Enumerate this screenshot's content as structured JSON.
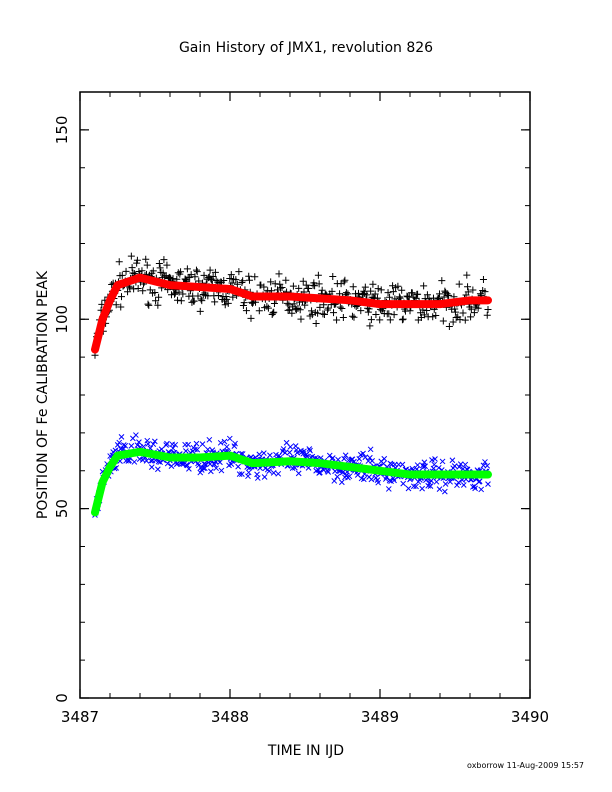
{
  "chart_data": {
    "type": "scatter",
    "title": "Gain History of JMX1, revolution 826",
    "xlabel": "TIME IN IJD",
    "ylabel": "POSITION OF Fe CALIBRATION PEAK",
    "footer": "oxborrow 11-Aug-2009 15:57",
    "xlim": [
      3487,
      3490
    ],
    "ylim": [
      0,
      160
    ],
    "x_ticks": [
      3487,
      3488,
      3489,
      3490
    ],
    "x_tick_labels": [
      "3487",
      "3488",
      "3489",
      "3490"
    ],
    "y_ticks": [
      0,
      50,
      100,
      150
    ],
    "y_tick_labels": [
      "0",
      "50",
      "100",
      "150"
    ],
    "grid": false,
    "legend": false,
    "series": [
      {
        "marker": "plus",
        "color": "#000000",
        "trend": [
          [
            3487.1,
            92
          ],
          [
            3487.15,
            100
          ],
          [
            3487.2,
            105
          ],
          [
            3487.25,
            109
          ],
          [
            3487.4,
            111
          ],
          [
            3487.6,
            109
          ],
          [
            3487.8,
            108.5
          ],
          [
            3488.0,
            108
          ],
          [
            3488.15,
            106
          ],
          [
            3488.4,
            106
          ],
          [
            3488.6,
            105.5
          ],
          [
            3488.8,
            105
          ],
          [
            3489.0,
            104
          ],
          [
            3489.2,
            104
          ],
          [
            3489.4,
            104
          ],
          [
            3489.6,
            105
          ],
          [
            3489.72,
            105
          ]
        ],
        "spread": 4
      },
      {
        "marker": "line",
        "color": "#ff0000",
        "values": [
          [
            3487.1,
            92
          ],
          [
            3487.15,
            100
          ],
          [
            3487.2,
            105
          ],
          [
            3487.25,
            109
          ],
          [
            3487.4,
            111
          ],
          [
            3487.6,
            109
          ],
          [
            3487.8,
            108.5
          ],
          [
            3488.0,
            108
          ],
          [
            3488.15,
            106
          ],
          [
            3488.4,
            106
          ],
          [
            3488.6,
            105.5
          ],
          [
            3488.8,
            105
          ],
          [
            3489.0,
            104
          ],
          [
            3489.2,
            104
          ],
          [
            3489.4,
            104
          ],
          [
            3489.6,
            105
          ],
          [
            3489.72,
            105
          ]
        ]
      },
      {
        "marker": "cross",
        "color": "#0000ff",
        "trend": [
          [
            3487.1,
            49
          ],
          [
            3487.15,
            57
          ],
          [
            3487.2,
            61
          ],
          [
            3487.25,
            64
          ],
          [
            3487.4,
            65
          ],
          [
            3487.6,
            63.5
          ],
          [
            3487.8,
            63.5
          ],
          [
            3488.0,
            64
          ],
          [
            3488.15,
            62
          ],
          [
            3488.4,
            62.5
          ],
          [
            3488.6,
            62
          ],
          [
            3488.8,
            61
          ],
          [
            3489.0,
            60
          ],
          [
            3489.2,
            59
          ],
          [
            3489.4,
            59
          ],
          [
            3489.6,
            59
          ],
          [
            3489.72,
            59
          ]
        ],
        "spread": 3
      },
      {
        "marker": "line",
        "color": "#00ff00",
        "values": [
          [
            3487.1,
            49
          ],
          [
            3487.15,
            57
          ],
          [
            3487.2,
            61
          ],
          [
            3487.25,
            64
          ],
          [
            3487.4,
            65
          ],
          [
            3487.6,
            63.5
          ],
          [
            3487.8,
            63.5
          ],
          [
            3488.0,
            64
          ],
          [
            3488.15,
            62
          ],
          [
            3488.4,
            62.5
          ],
          [
            3488.6,
            62
          ],
          [
            3488.8,
            61
          ],
          [
            3489.0,
            60
          ],
          [
            3489.2,
            59
          ],
          [
            3489.4,
            59
          ],
          [
            3489.6,
            59
          ],
          [
            3489.72,
            59
          ]
        ]
      }
    ]
  }
}
